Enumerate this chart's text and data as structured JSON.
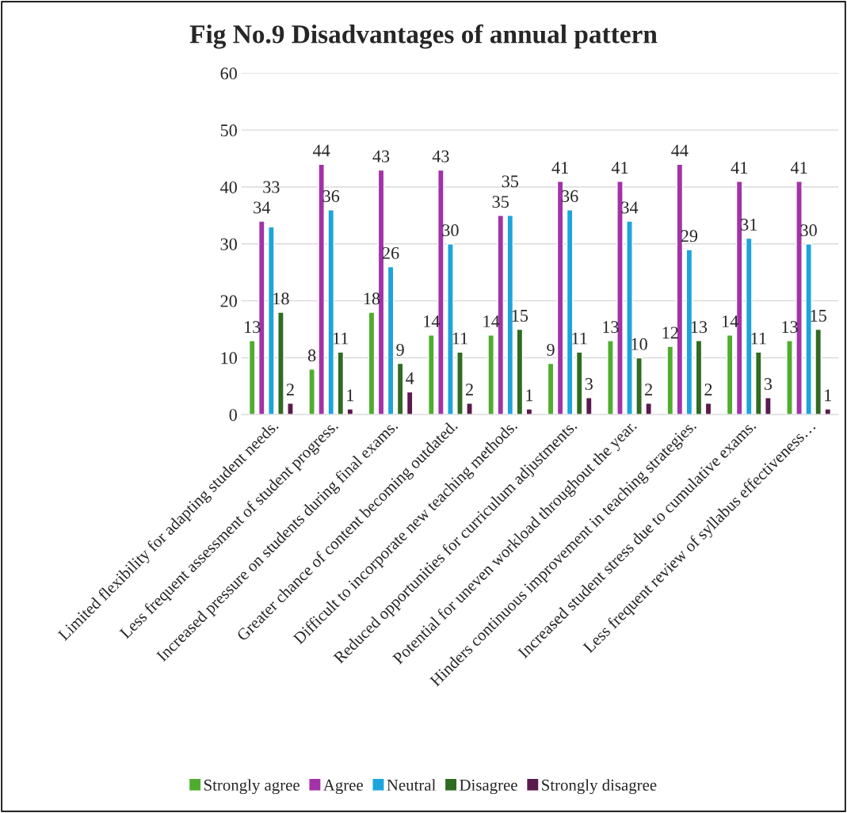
{
  "chart_data": {
    "type": "bar",
    "title": "Fig No.9 Disadvantages of annual pattern",
    "categories": [
      "Limited flexibility for adapting student needs.",
      "Less frequent assessment of student progress.",
      "Increased pressure on students during final exams.",
      "Greater chance of content becoming outdated.",
      "Difficult to incorporate new teaching methods.",
      "Reduced opportunities for curriculum adjustments.",
      "Potential for uneven workload throughout the year.",
      "Hinders continuous improvement in teaching strategies.",
      "Increased student stress due to cumulative exams.",
      "Less frequent review of syllabus effectiveness…"
    ],
    "series": [
      {
        "name": "Strongly agree",
        "color": "#4fad2e",
        "values": [
          13,
          8,
          18,
          14,
          14,
          9,
          13,
          12,
          14,
          13
        ]
      },
      {
        "name": "Agree",
        "color": "#a232a8",
        "values": [
          34,
          44,
          43,
          43,
          35,
          41,
          41,
          44,
          41,
          41
        ]
      },
      {
        "name": "Neutral",
        "color": "#1da4dc",
        "values": [
          33,
          36,
          26,
          30,
          35,
          36,
          34,
          29,
          31,
          30
        ]
      },
      {
        "name": "Disagree",
        "color": "#2f6b21",
        "values": [
          18,
          11,
          9,
          11,
          15,
          11,
          10,
          13,
          11,
          15
        ]
      },
      {
        "name": "Strongly disagree",
        "color": "#5b1a4c",
        "values": [
          2,
          1,
          4,
          2,
          1,
          3,
          2,
          2,
          3,
          1
        ]
      }
    ],
    "ylim": [
      0,
      60
    ],
    "yticks": [
      0,
      10,
      20,
      30,
      40,
      50,
      60
    ],
    "grid": "y",
    "legend": "bottom",
    "data_labels": true
  }
}
